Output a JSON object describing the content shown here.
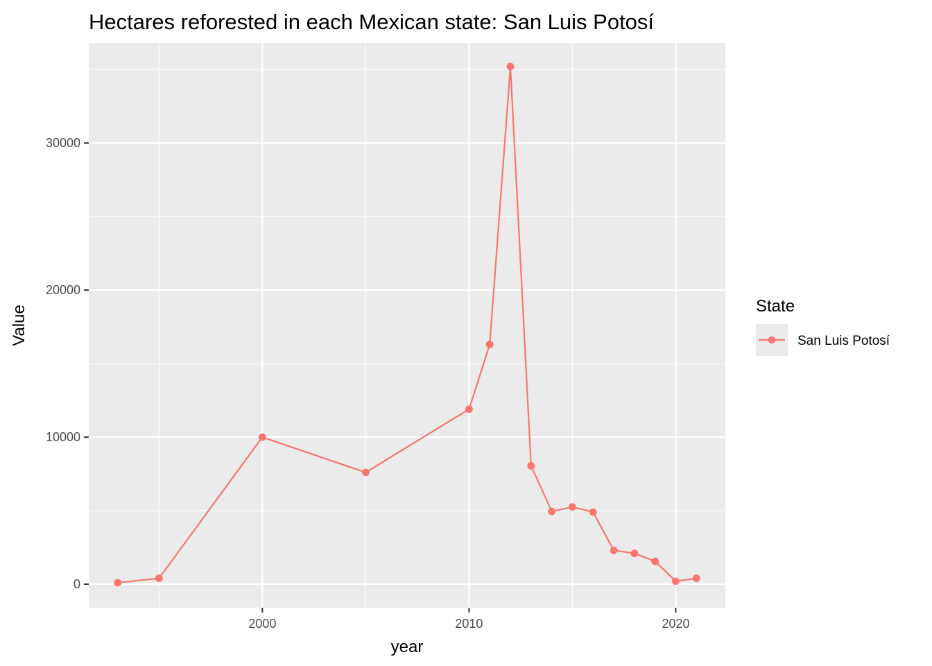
{
  "chart_data": {
    "type": "line",
    "title": "Hectares reforested in each Mexican state: San Luis Potosí",
    "xlabel": "year",
    "ylabel": "Value",
    "xlim": [
      1991.6,
      2022.4
    ],
    "ylim": [
      -1600,
      36800
    ],
    "x_ticks": [
      2000,
      2010,
      2020
    ],
    "x_tick_labels": [
      "2000",
      "2010",
      "2020"
    ],
    "y_ticks": [
      0,
      10000,
      20000,
      30000
    ],
    "y_tick_labels": [
      "0",
      "10000",
      "20000",
      "30000"
    ],
    "grid": true,
    "legend": {
      "title": "State",
      "position": "right"
    },
    "series": [
      {
        "name": "San Luis Potosí",
        "color": "#F8766D",
        "x": [
          1993,
          1995,
          2000,
          2005,
          2010,
          2011,
          2012,
          2013,
          2014,
          2015,
          2016,
          2017,
          2018,
          2019,
          2020,
          2021
        ],
        "values": [
          100,
          400,
          10000,
          7600,
          11900,
          16300,
          35200,
          8050,
          4950,
          5250,
          4900,
          2300,
          2100,
          1550,
          200,
          400
        ]
      }
    ]
  }
}
